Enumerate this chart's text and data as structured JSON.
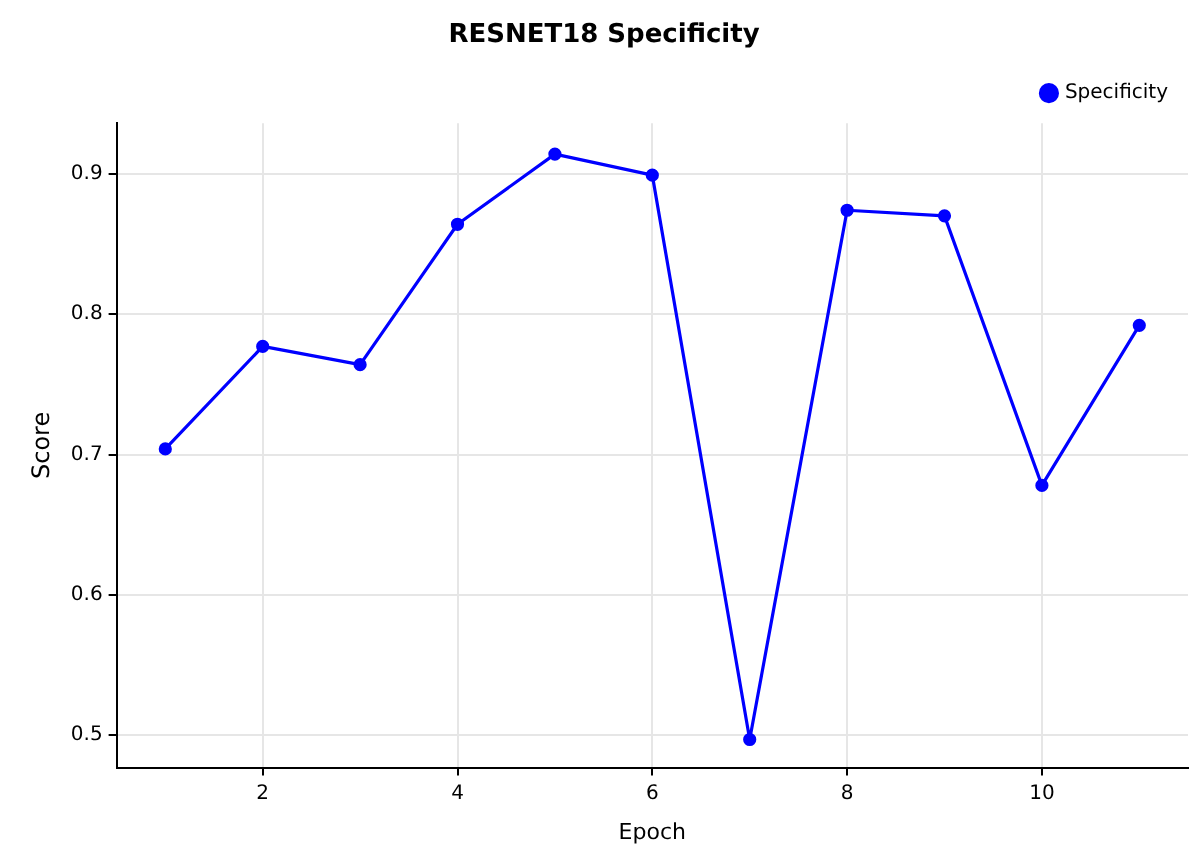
{
  "chart_data": {
    "type": "line",
    "title": "RESNET18 Specificity",
    "xlabel": "Epoch",
    "ylabel": "Score",
    "x": [
      1,
      2,
      3,
      4,
      5,
      6,
      7,
      8,
      9,
      10,
      11
    ],
    "series": [
      {
        "name": "Specificity",
        "color": "#0000ff",
        "values": [
          0.704,
          0.777,
          0.764,
          0.864,
          0.914,
          0.899,
          0.497,
          0.874,
          0.87,
          0.678,
          0.792
        ]
      }
    ],
    "xlim": [
      0.5,
      11.5
    ],
    "xticks": [
      2,
      4,
      6,
      8,
      10
    ],
    "ylim": [
      0.477,
      0.936
    ],
    "yticks": [
      0.5,
      0.6,
      0.7,
      0.8,
      0.9
    ],
    "grid": true,
    "legend": "top right",
    "marker": "circle",
    "line_style": "solid"
  }
}
